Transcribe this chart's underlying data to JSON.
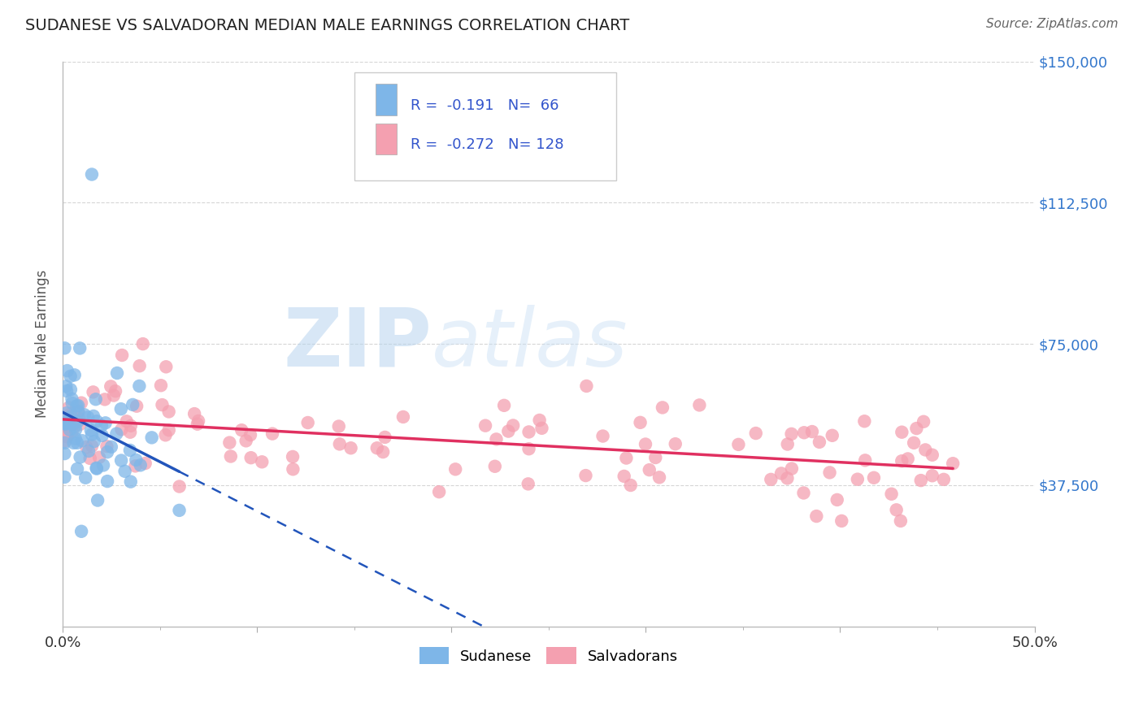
{
  "title": "SUDANESE VS SALVADORAN MEDIAN MALE EARNINGS CORRELATION CHART",
  "source": "Source: ZipAtlas.com",
  "ylabel": "Median Male Earnings",
  "xlim": [
    0.0,
    0.5
  ],
  "ylim": [
    0,
    150000
  ],
  "ytick_vals": [
    0,
    37500,
    75000,
    112500,
    150000
  ],
  "ytick_labels": [
    "",
    "$37,500",
    "$75,000",
    "$112,500",
    "$150,000"
  ],
  "grid_color": "#cccccc",
  "background_color": "#ffffff",
  "sudanese_color": "#7eb6e8",
  "salvadoran_color": "#f4a0b0",
  "sudanese_R": -0.191,
  "sudanese_N": 66,
  "salvadoran_R": -0.272,
  "salvadoran_N": 128,
  "legend_text_color": "#3355cc",
  "trend_blue": "#2255bb",
  "trend_pink": "#e03060"
}
